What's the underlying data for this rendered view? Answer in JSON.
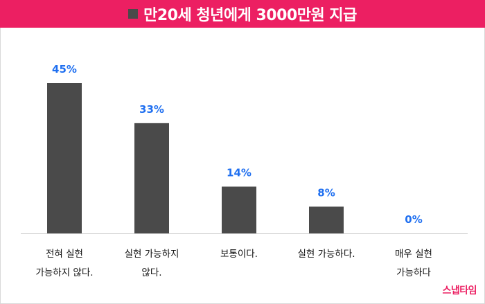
{
  "header": {
    "title": "만20세 청년에게 3000만원 지급"
  },
  "chart_data": {
    "type": "bar",
    "categories": [
      [
        "전혀 실현",
        "가능하지 않다."
      ],
      [
        "실현 가능하지",
        "않다."
      ],
      [
        "보통이다."
      ],
      [
        "실현 가능하다."
      ],
      [
        "매우 실현",
        "가능하다"
      ]
    ],
    "values": [
      45,
      33,
      14,
      8,
      0
    ],
    "value_labels": [
      "45%",
      "33%",
      "14%",
      "8%",
      "0%"
    ],
    "ylim": [
      0,
      45
    ],
    "bar_color": "#4a4a4a",
    "label_color": "#1f6ff0",
    "grid": false
  },
  "source": {
    "label": "스냅타임"
  },
  "colors": {
    "accent": "#ec1f62"
  }
}
